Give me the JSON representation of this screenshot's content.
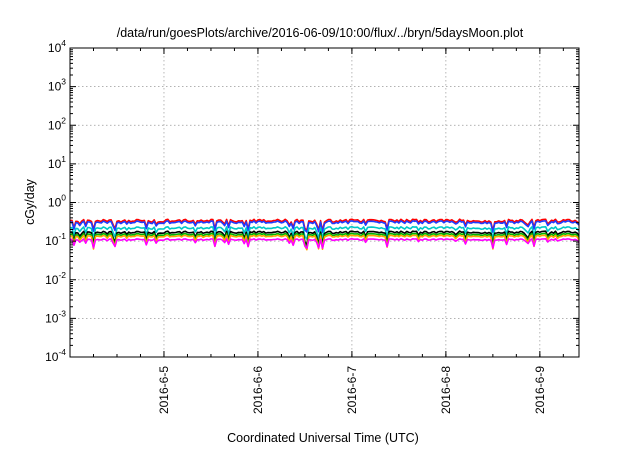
{
  "chart_data": {
    "type": "line",
    "title": "/data/run/goesPlots/archive/2016-06-09/10:00/flux/../bryn/5daysMoon.plot",
    "xlabel": "Coordinated Universal Time (UTC)",
    "ylabel": "cGy/day",
    "yscale": "log",
    "ylim": [
      0.0001,
      10000
    ],
    "xlim": [
      "2016-06-04 00:00",
      "2016-06-09 10:00"
    ],
    "x_ticks": [
      "2016-6-5",
      "2016-6-6",
      "2016-6-7",
      "2016-6-8",
      "2016-6-9"
    ],
    "y_ticks": [
      {
        "base": "10",
        "exp": "-4"
      },
      {
        "base": "10",
        "exp": "-3"
      },
      {
        "base": "10",
        "exp": "-2"
      },
      {
        "base": "10",
        "exp": "-1"
      },
      {
        "base": "10",
        "exp": "0"
      },
      {
        "base": "10",
        "exp": "1"
      },
      {
        "base": "10",
        "exp": "2"
      },
      {
        "base": "10",
        "exp": "3"
      },
      {
        "base": "10",
        "exp": "4"
      }
    ],
    "grid": true,
    "legend": "none",
    "series": [
      {
        "color": "#ff0000",
        "approx_level": 0.34,
        "dip": 0.6
      },
      {
        "color": "#1e3cff",
        "approx_level": 0.31,
        "dip": 0.62
      },
      {
        "color": "#00c8c8",
        "approx_level": 0.22,
        "dip": 0.7
      },
      {
        "color": "#000000",
        "approx_level": 0.17,
        "dip": 0.8
      },
      {
        "color": "#00b400",
        "approx_level": 0.15,
        "dip": 0.85
      },
      {
        "color": "#ffa500",
        "approx_level": 0.135,
        "dip": 0.85
      },
      {
        "color": "#ff00ff",
        "approx_level": 0.11,
        "dip": 0.55
      }
    ]
  }
}
